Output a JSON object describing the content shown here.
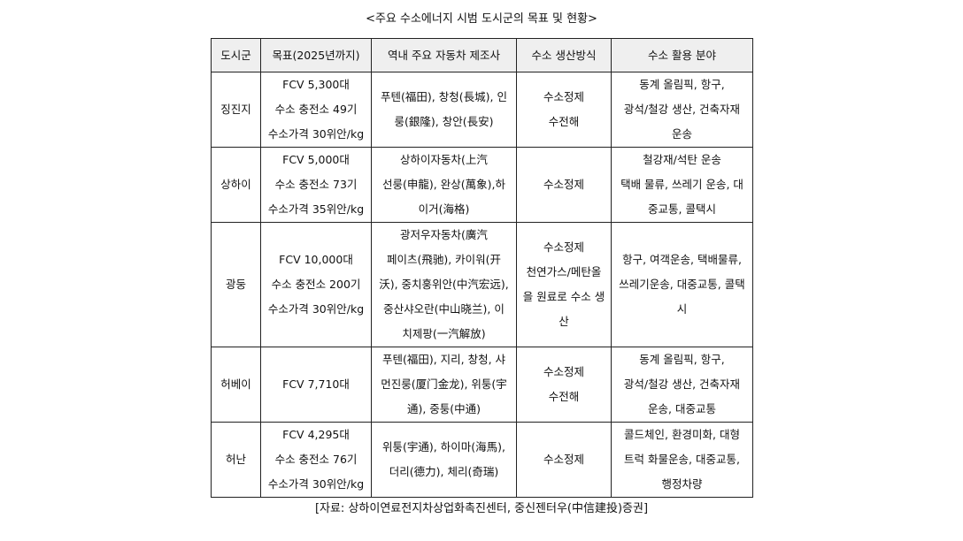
{
  "title": "<주요 수소에너지 시범 도시군의 목표 및 현황>",
  "headers": [
    "도시군",
    "목표(2025년까지)",
    "역내 주요 자동차 제조사",
    "수소 생산방식",
    "수소 활용 분야"
  ],
  "rows": [
    [
      "징진지",
      "FCV 5,300대\n수소 충전소 49기\n수소가격 30위안/kg",
      "푸텐(福田), 창청(長城), 인\n룽(銀隆), 창안(長安)",
      "수소정제\n수전해",
      "동계 올림픽, 항구,\n광석/철강 생산, 건축자재\n운송"
    ],
    [
      "상하이",
      "FCV 5,000대\n수소 충전소 73기\n수소가격 35위안/kg",
      "상하이자동차(上汽\n선룽(申龍), 완상(萬象),하\n이거(海格)",
      "수소정제",
      "철강재/석탄 운송\n택배 물류, 쓰레기 운송, 대\n중교통, 콜택시"
    ],
    [
      "광둥",
      "FCV 10,000대\n수소 충전소 200기\n수소가격 30위안/kg",
      "광저우자동차(廣汽\n페이츠(飛驰), 카이워(开\n沃), 중치훙위안(中汽宏远),\n중산샤오란(中山晓兰), 이\n치제팡(一汽解放)",
      "수소정제\n천연가스/메탄올\n을 원료로 수소 생\n산",
      "항구, 여객운송, 택배물류,\n쓰레기운송, 대중교통, 콜택\n시"
    ],
    [
      "허베이",
      "FCV 7,710대",
      "푸텐(福田), 지리, 창청, 샤\n먼진룽(厦门金龙), 위퉁(宇\n通), 중퉁(中通)",
      "수소정제\n수전해",
      "동계 올림픽, 항구,\n광석/철강 생산, 건축자재\n운송, 대중교통"
    ],
    [
      "허난",
      "FCV 4,295대\n수소 충전소 76기\n수소가격 30위안/kg",
      "위퉁(宇通), 하이마(海馬),\n더리(德力), 체리(奇瑞)",
      "수소정제",
      "콜드체인, 환경미화, 대형\n트럭 화물운송, 대중교통,\n행정차량"
    ]
  ],
  "source": "[자료: 상하이연료전지차상업화촉진센터, 중신젠터우(中信建投)증권]"
}
